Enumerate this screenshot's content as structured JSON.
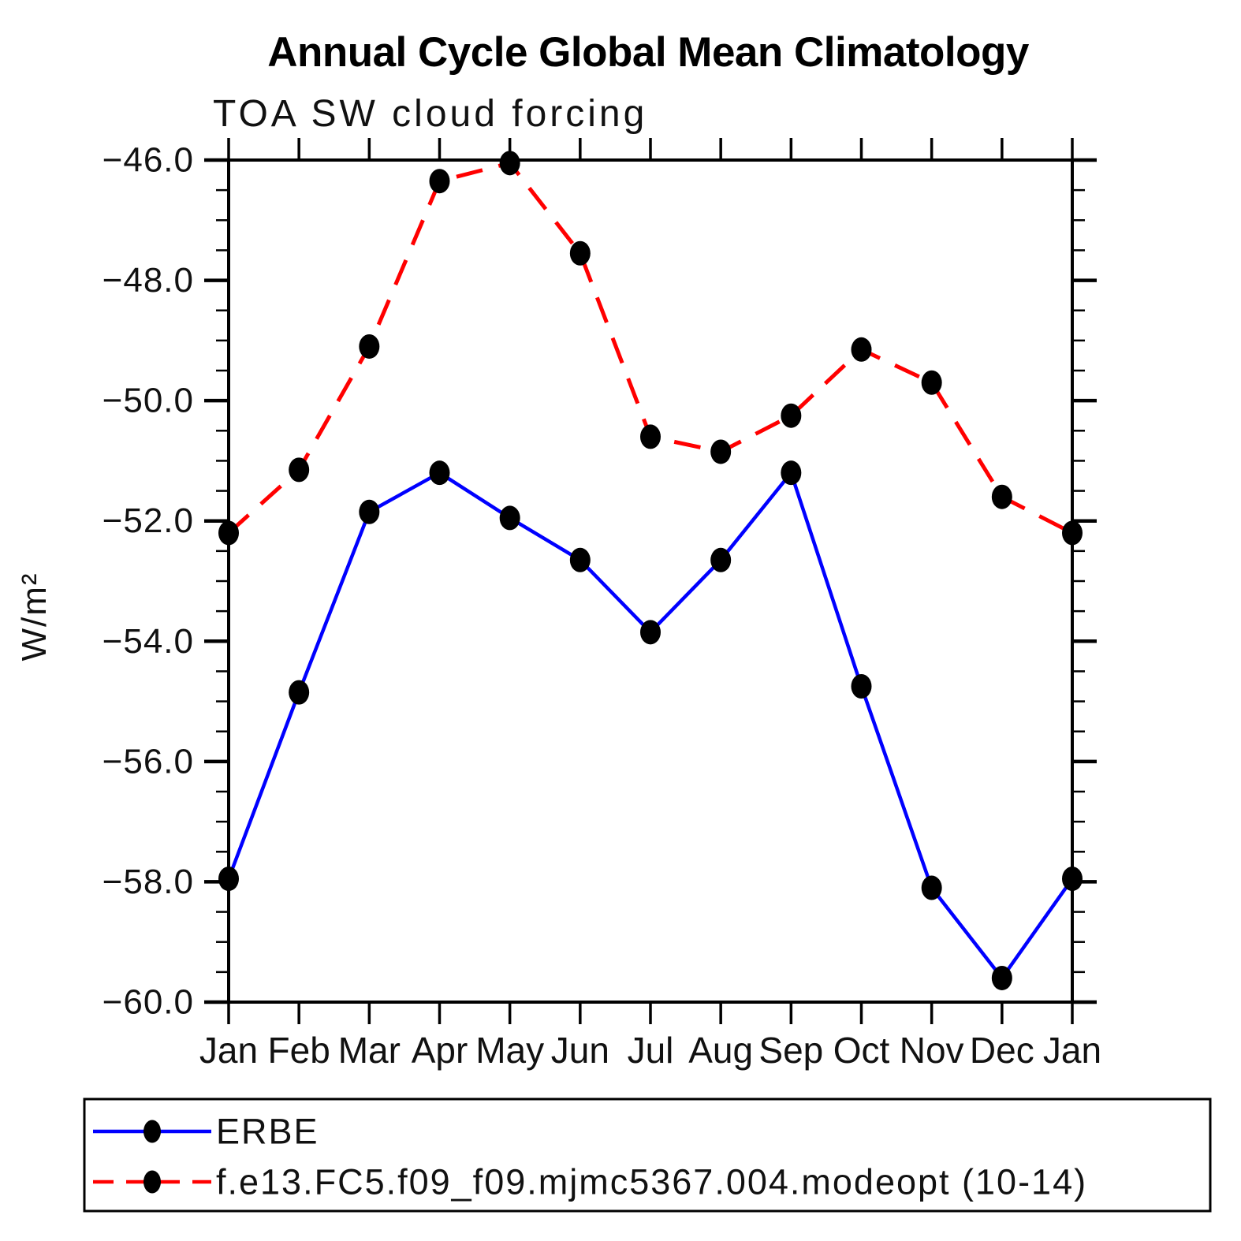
{
  "chart_data": {
    "type": "line",
    "title": "Annual Cycle Global Mean Climatology",
    "subtitle": "TOA SW cloud forcing",
    "ylabel": "W/m²",
    "xlabel": "",
    "grid": false,
    "background_color": "#ffffff",
    "axis_color": "#000000",
    "ylim": [
      -60.0,
      -46.0
    ],
    "ytick_major_interval": 2.0,
    "ytick_minor_interval": 0.5,
    "y_ticks": [
      {
        "value": -46.0,
        "label": "-46.0"
      },
      {
        "value": -48.0,
        "label": "-48.0"
      },
      {
        "value": -50.0,
        "label": "-50.0"
      },
      {
        "value": -52.0,
        "label": "-52.0"
      },
      {
        "value": -54.0,
        "label": "-54.0"
      },
      {
        "value": -56.0,
        "label": "-56.0"
      },
      {
        "value": -58.0,
        "label": "-58.0"
      },
      {
        "value": -60.0,
        "label": "-60.0"
      }
    ],
    "categories": [
      "Jan",
      "Feb",
      "Mar",
      "Apr",
      "May",
      "Jun",
      "Jul",
      "Aug",
      "Sep",
      "Oct",
      "Nov",
      "Dec",
      "Jan"
    ],
    "series": [
      {
        "name": "ERBE",
        "line_color": "#0000ff",
        "line_style": "solid",
        "marker_color": "#000000",
        "values": [
          -57.95,
          -54.85,
          -51.85,
          -51.2,
          -51.95,
          -52.65,
          -53.85,
          -52.65,
          -51.2,
          -54.75,
          -58.1,
          -59.6,
          -57.95
        ]
      },
      {
        "name": "f.e13.FC5.f09_f09.mjmc5367.004.modeopt (10-14)",
        "line_color": "#ff0000",
        "line_style": "dashed",
        "marker_color": "#000000",
        "values": [
          -52.2,
          -51.15,
          -49.1,
          -46.35,
          -46.05,
          -47.55,
          -50.6,
          -50.85,
          -50.25,
          -49.15,
          -49.7,
          -51.6,
          -52.2
        ]
      }
    ],
    "legend_position": "bottom"
  }
}
